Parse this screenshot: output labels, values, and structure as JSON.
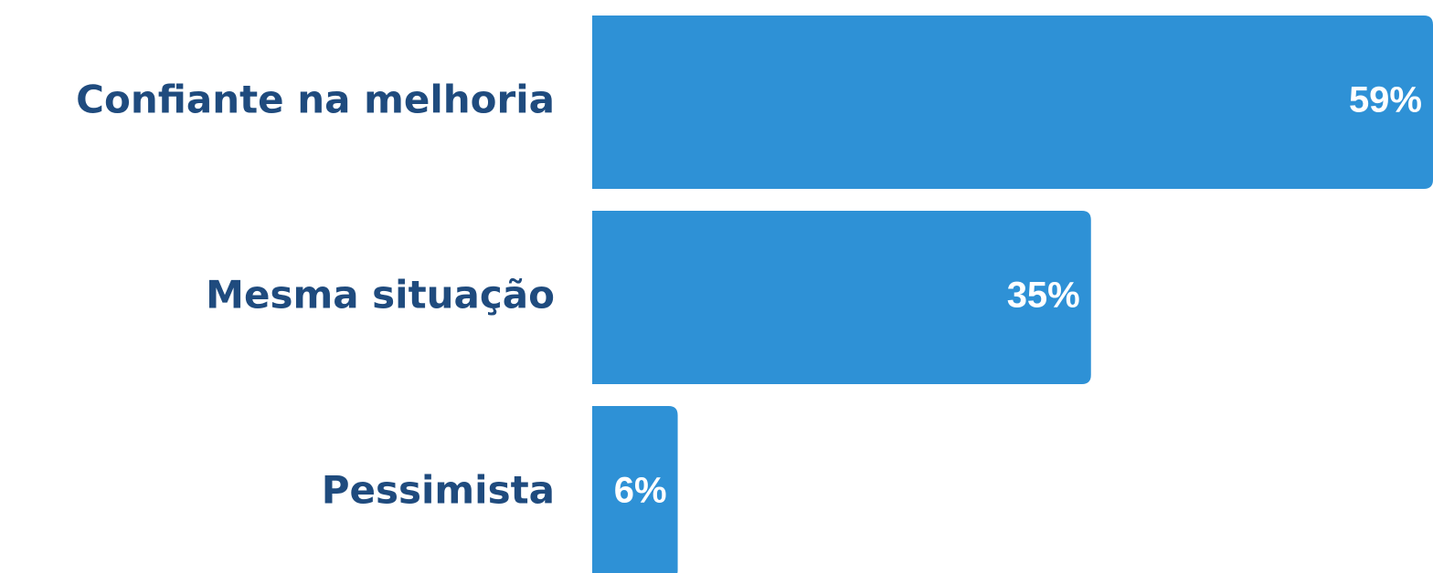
{
  "chart_data": {
    "type": "bar",
    "orientation": "horizontal",
    "categories": [
      "Confiante na melhoria",
      "Mesma situação",
      "Pessimista"
    ],
    "values": [
      59,
      35,
      6
    ],
    "value_labels": [
      "59%",
      "35%",
      "6%"
    ],
    "color": "#2e91d6"
  }
}
